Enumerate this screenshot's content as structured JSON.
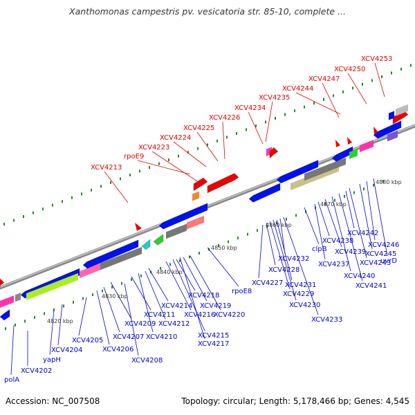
{
  "title": "Xanthomonas campestris pv. vesicatoria str. 85-10, complete ...",
  "footer": {
    "accession": "Accession: NC_007508",
    "summary": "Topology: circular; Length: 5,178,466 bp; Genes: 4,545"
  },
  "colors": {
    "forward_label": "#dd0000",
    "reverse_label": "#0000cc",
    "backbone": "#999999",
    "forward_gene": "#ee0000",
    "reverse_gene": "#0000ee",
    "tick": "#228822"
  },
  "scale_labels": [
    "4820 kbp",
    "4830 kbp",
    "4840 kbp",
    "4850 kbp",
    "4860 kbp",
    "4870 kbp",
    "4880 kbp"
  ],
  "forward_labels": [
    "XCV4213",
    "rpoE9",
    "XCV4223",
    "XCV4224",
    "XCV4225",
    "XCV4226",
    "XCV4234",
    "XCV4235",
    "XCV4244",
    "XCV4247",
    "XCV4250",
    "XCV4253"
  ],
  "reverse_labels": [
    "polA",
    "XCV4202",
    "yapH",
    "XCV4204",
    "XCV4205",
    "XCV4206",
    "XCV4207",
    "XCV4208",
    "XCV4209",
    "XCV4210",
    "XCV4211",
    "XCV4212",
    "XCV4214",
    "XCV4215",
    "XCV4216",
    "XCV4217",
    "XCV4218",
    "XCV4219",
    "XCV4220",
    "rpoE8",
    "XCV4227",
    "XCV4228",
    "XCV4229",
    "XCV4230",
    "XCV4231",
    "XCV4232",
    "XCV4233",
    "clpB",
    "XCV4237",
    "XCV4238",
    "XCV4239",
    "XCV4240",
    "XCV4241",
    "XCV4242",
    "XCV4243",
    "XCV4245",
    "XCV4246",
    "uvrD"
  ]
}
